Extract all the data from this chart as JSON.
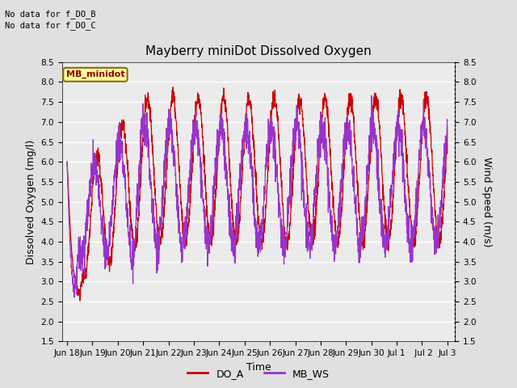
{
  "title": "Mayberry miniDot Dissolved Oxygen",
  "xlabel": "Time",
  "ylabel_left": "Dissolved Oxygen (mg/l)",
  "ylabel_right": "Wind Speed (m/s)",
  "annotation_lines": [
    "No data for f_DO_B",
    "No data for f_DO_C"
  ],
  "legend_box_label": "MB_minidot",
  "legend_entries": [
    "DO_A",
    "MB_WS"
  ],
  "legend_colors": [
    "#cc0000",
    "#9933cc"
  ],
  "ylim_left": [
    1.5,
    8.5
  ],
  "ylim_right": [
    1.5,
    8.5
  ],
  "yticks_left": [
    1.5,
    2.0,
    2.5,
    3.0,
    3.5,
    4.0,
    4.5,
    5.0,
    5.5,
    6.0,
    6.5,
    7.0,
    7.5,
    8.0,
    8.5
  ],
  "do_color": "#cc0000",
  "ws_color": "#9933cc",
  "bg_color": "#e0e0e0",
  "plot_bg_color": "#ebebeb",
  "grid_color": "#ffffff",
  "title_fontsize": 11,
  "axis_label_fontsize": 9,
  "tick_fontsize": 7.5,
  "annotation_fontsize": 7.5,
  "xtick_labels": [
    "Jun 18",
    "Jun 19",
    "Jun 20",
    "Jun 21",
    "Jun 22",
    "Jun 23",
    "Jun 24",
    "Jun 25",
    "Jun 26",
    "Jun 27",
    "Jun 28",
    "Jun 29",
    "Jun 30",
    "Jul 1",
    " Jul 2",
    "Jul 3"
  ]
}
